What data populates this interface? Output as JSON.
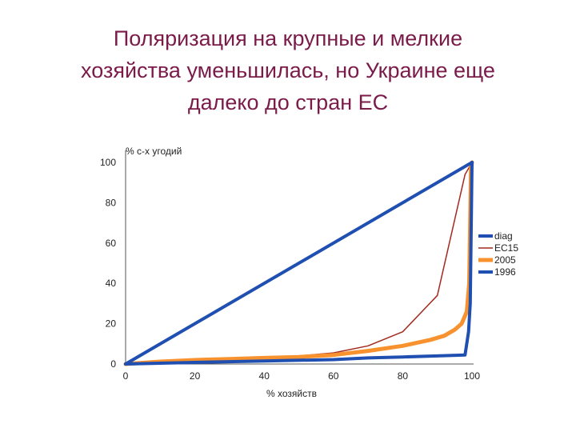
{
  "slide": {
    "title_lines": [
      "Поляризация на крупные и мелкие",
      "хозяйства уменьшилась, но Украине еще",
      "далеко до стран ЕС"
    ]
  },
  "chart_data": {
    "type": "line",
    "title": "",
    "xlabel": "% хозяйств",
    "ylabel": "% с-х угодий",
    "xlim": [
      0,
      100
    ],
    "ylim": [
      0,
      100
    ],
    "x_ticks": [
      0,
      20,
      40,
      60,
      80,
      100
    ],
    "y_ticks": [
      0,
      20,
      40,
      60,
      80,
      100
    ],
    "grid": false,
    "legend_position": "right",
    "series": [
      {
        "name": "diag",
        "color": "#1f4fb0",
        "points": [
          [
            0,
            0
          ],
          [
            100,
            100
          ]
        ]
      },
      {
        "name": "ЕС15",
        "color": "#a32a1e",
        "points": [
          [
            0,
            0
          ],
          [
            10,
            1
          ],
          [
            20,
            1.5
          ],
          [
            30,
            2
          ],
          [
            40,
            3
          ],
          [
            50,
            4
          ],
          [
            60,
            5.5
          ],
          [
            70,
            9
          ],
          [
            80,
            16
          ],
          [
            90,
            34
          ],
          [
            98,
            94
          ],
          [
            100,
            100
          ]
        ]
      },
      {
        "name": "2005",
        "color": "#f7922e",
        "points": [
          [
            0,
            0
          ],
          [
            10,
            1.2
          ],
          [
            20,
            2
          ],
          [
            30,
            2.5
          ],
          [
            40,
            3
          ],
          [
            50,
            3.5
          ],
          [
            60,
            4.5
          ],
          [
            70,
            6.5
          ],
          [
            80,
            9
          ],
          [
            88,
            12
          ],
          [
            92,
            14
          ],
          [
            95,
            17
          ],
          [
            97,
            20
          ],
          [
            98.5,
            26
          ],
          [
            99.2,
            40
          ],
          [
            99.7,
            97
          ],
          [
            100,
            100
          ]
        ]
      },
      {
        "name": "1996",
        "color": "#1f4fb0",
        "points": [
          [
            0,
            0
          ],
          [
            20,
            0.8
          ],
          [
            40,
            1.5
          ],
          [
            60,
            2.2
          ],
          [
            70,
            3
          ],
          [
            80,
            3.5
          ],
          [
            90,
            4
          ],
          [
            98,
            4.5
          ],
          [
            99,
            16
          ],
          [
            99.5,
            30
          ],
          [
            100,
            100
          ]
        ]
      }
    ]
  }
}
